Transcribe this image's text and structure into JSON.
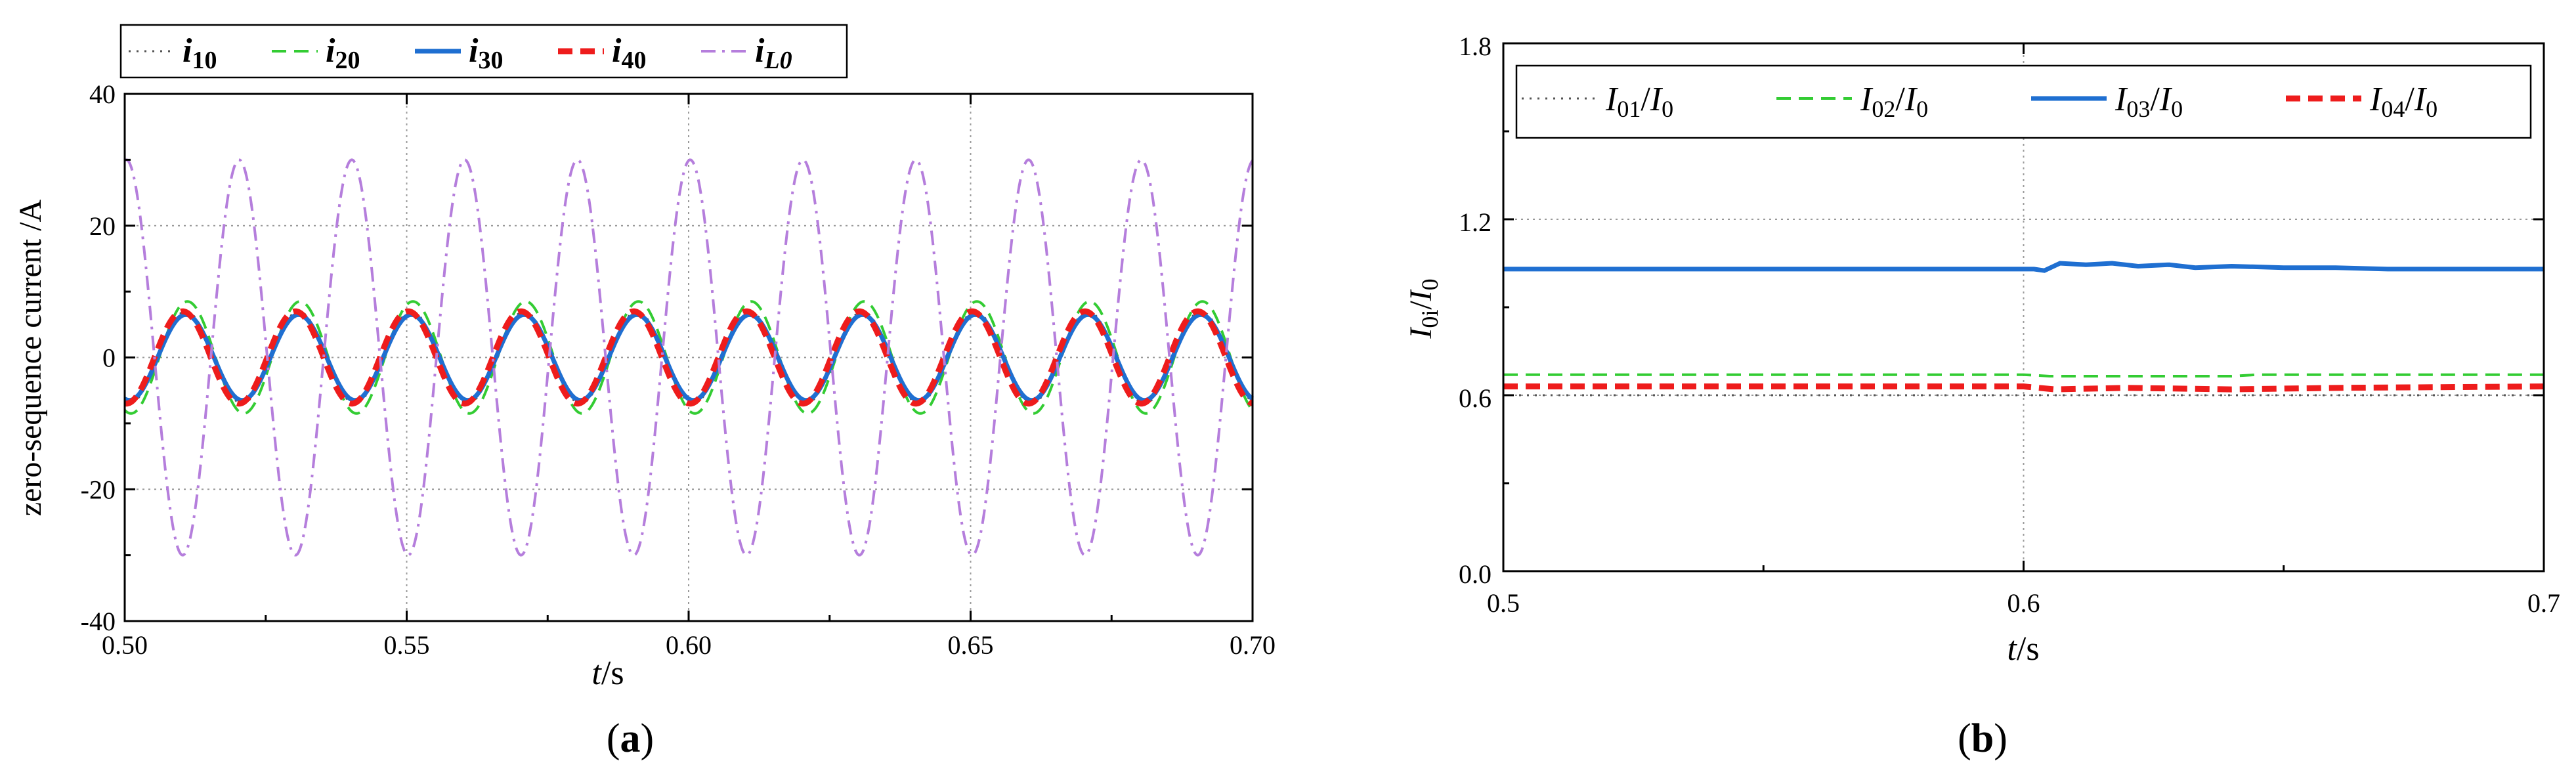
{
  "chart_data": [
    {
      "id": "a",
      "type": "line",
      "panel_label": "a",
      "title": "",
      "ylabel": "zero-sequence current /A",
      "xlabel": {
        "italic": "t",
        "rest": "/s"
      },
      "xlim": [
        0.5,
        0.7
      ],
      "ylim": [
        -40,
        40
      ],
      "x_ticks": [
        0.5,
        0.55,
        0.6,
        0.65,
        0.7
      ],
      "x_tick_labels": [
        "0.50",
        "0.55",
        "0.60",
        "0.65",
        "0.70"
      ],
      "y_ticks": [
        -40,
        -20,
        0,
        20,
        40
      ],
      "y_tick_labels": [
        "-40",
        "-20",
        "0",
        "20",
        "40"
      ],
      "grid": "dotted at major ticks",
      "legend_position": "top, above plot",
      "frequency_hz": 50,
      "series": [
        {
          "name": "i10",
          "legend": {
            "base": "i",
            "sub": "10"
          },
          "color": "#555555",
          "style": "dotted",
          "amplitude": 7.0,
          "phase_deg": -105
        },
        {
          "name": "i20",
          "legend": {
            "base": "i",
            "sub": "20"
          },
          "color": "#33cc33",
          "style": "dashed",
          "amplitude": 8.5,
          "phase_deg": -110
        },
        {
          "name": "i30",
          "legend": {
            "base": "i",
            "sub": "30"
          },
          "color": "#1f6fd1",
          "style": "solid",
          "amplitude": 6.5,
          "phase_deg": -105
        },
        {
          "name": "i40",
          "legend": {
            "base": "i",
            "sub": "40"
          },
          "color": "#ee1c1c",
          "style": "dashed-thick",
          "amplitude": 7.0,
          "phase_deg": -95
        },
        {
          "name": "iL0",
          "legend": {
            "base": "i",
            "sub": "L0"
          },
          "color": "#b57edc",
          "style": "dash-dot",
          "amplitude": 30.0,
          "phase_deg": 85
        }
      ]
    },
    {
      "id": "b",
      "type": "line",
      "panel_label": "b",
      "title": "",
      "ylabel": {
        "num": "I",
        "num_sub": "0i",
        "den": "I",
        "den_sub": "0"
      },
      "xlabel": {
        "italic": "t",
        "rest": "/s"
      },
      "xlim": [
        0.5,
        0.7
      ],
      "ylim": [
        0.0,
        1.8
      ],
      "x_ticks": [
        0.5,
        0.6,
        0.7
      ],
      "x_tick_labels": [
        "0.5",
        "0.6",
        "0.7"
      ],
      "y_ticks": [
        0.0,
        0.6,
        1.2,
        1.8
      ],
      "y_tick_labels": [
        "0.0",
        "0.6",
        "1.2",
        "1.8"
      ],
      "grid": "dotted at major ticks",
      "legend_position": "top, inside plot",
      "series": [
        {
          "name": "I01/I0",
          "legend": {
            "num_sub": "01",
            "den_sub": "0"
          },
          "color": "#555555",
          "style": "dotted",
          "points": [
            [
              0.5,
              0.6
            ],
            [
              0.7,
              0.6
            ]
          ]
        },
        {
          "name": "I02/I0",
          "legend": {
            "num_sub": "02",
            "den_sub": "0"
          },
          "color": "#33cc33",
          "style": "dashed",
          "points": [
            [
              0.5,
              0.67
            ],
            [
              0.6,
              0.67
            ],
            [
              0.605,
              0.665
            ],
            [
              0.64,
              0.665
            ],
            [
              0.645,
              0.67
            ],
            [
              0.7,
              0.67
            ]
          ]
        },
        {
          "name": "I03/I0",
          "legend": {
            "num_sub": "03",
            "den_sub": "0"
          },
          "color": "#1f6fd1",
          "style": "solid",
          "points": [
            [
              0.5,
              1.03
            ],
            [
              0.602,
              1.03
            ],
            [
              0.604,
              1.025
            ],
            [
              0.607,
              1.05
            ],
            [
              0.612,
              1.045
            ],
            [
              0.617,
              1.05
            ],
            [
              0.622,
              1.04
            ],
            [
              0.628,
              1.045
            ],
            [
              0.633,
              1.035
            ],
            [
              0.64,
              1.04
            ],
            [
              0.65,
              1.035
            ],
            [
              0.66,
              1.035
            ],
            [
              0.67,
              1.03
            ],
            [
              0.7,
              1.03
            ]
          ]
        },
        {
          "name": "I04/I0",
          "legend": {
            "num_sub": "04",
            "den_sub": "0"
          },
          "color": "#ee1c1c",
          "style": "dashed-thick",
          "points": [
            [
              0.5,
              0.63
            ],
            [
              0.6,
              0.63
            ],
            [
              0.606,
              0.62
            ],
            [
              0.62,
              0.625
            ],
            [
              0.64,
              0.62
            ],
            [
              0.66,
              0.625
            ],
            [
              0.7,
              0.63
            ]
          ]
        }
      ]
    }
  ]
}
